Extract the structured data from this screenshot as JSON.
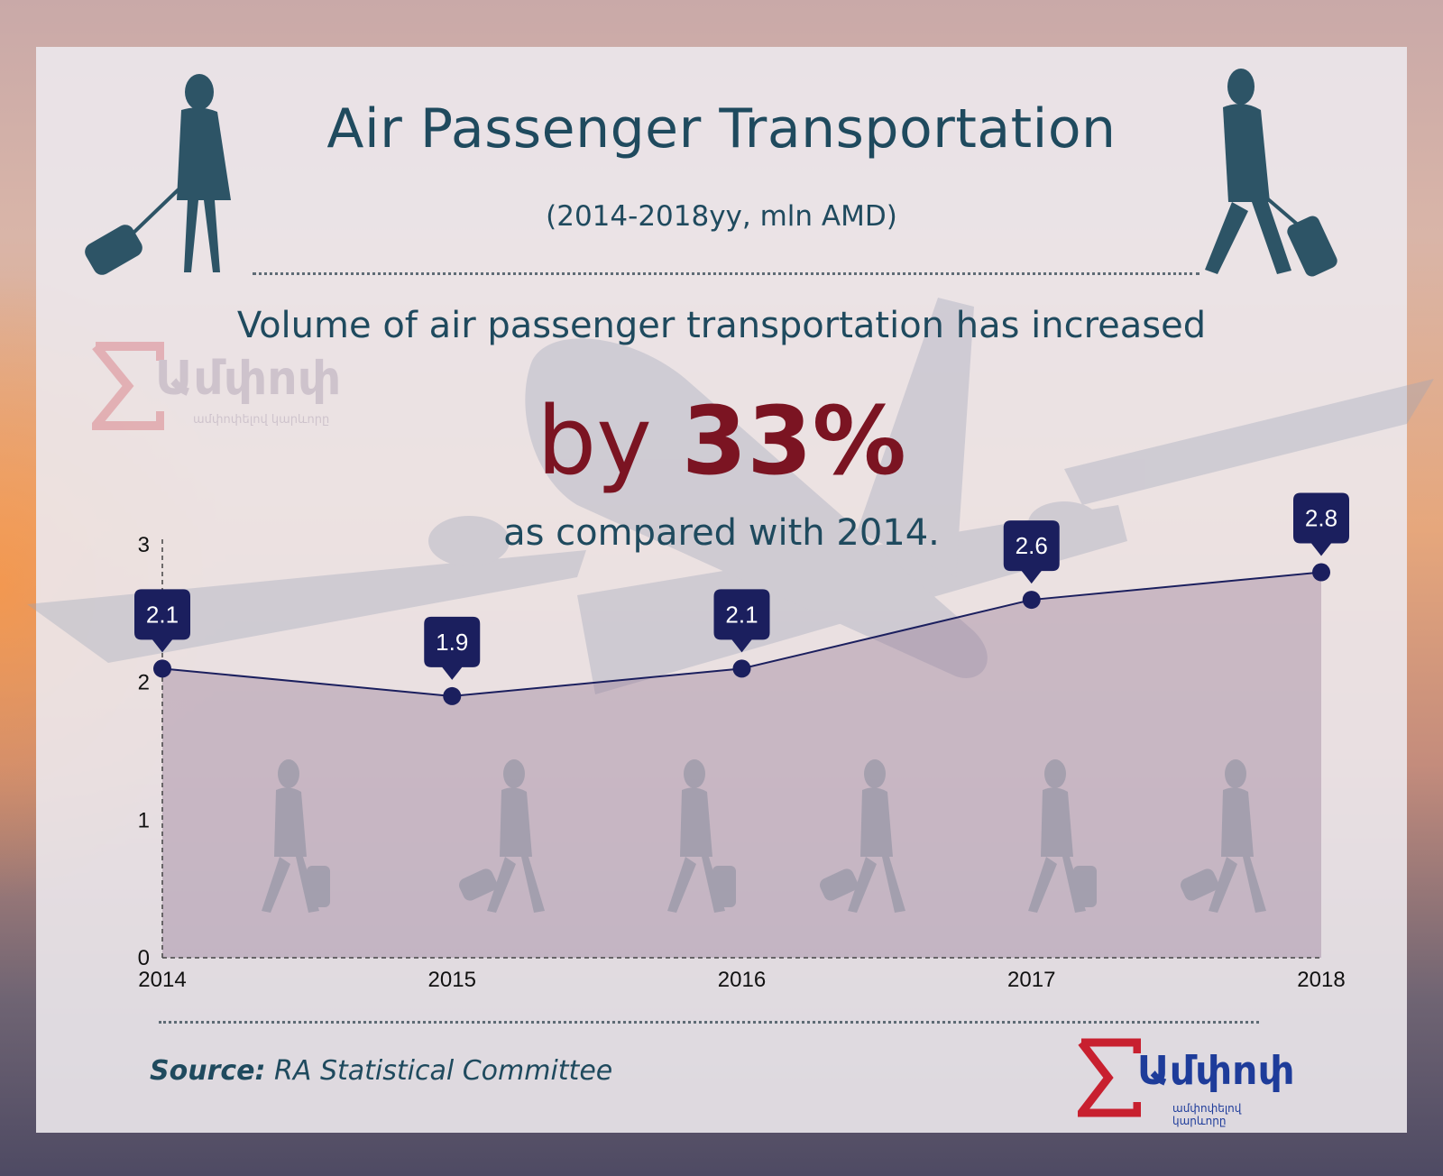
{
  "title": "Air Passenger Transportation",
  "subtitle": "(2014-2018yy, mln AMD)",
  "headline": "Volume of air passenger transportation has increased",
  "highlight": {
    "prefix": "by",
    "value": "33%"
  },
  "comparison": "as compared with 2014.",
  "source": {
    "label": "Source:",
    "text": "RA Statistical Committee"
  },
  "logo": {
    "text": "Ամփոփ",
    "subtitle": "ամփոփելով կարևորը"
  },
  "colors": {
    "title": "#1f4a5e",
    "highlight": "#7b1422",
    "line": "#1b1f5e",
    "logo_red": "#c8202f",
    "logo_blue": "#1e3c9a"
  },
  "chart_data": {
    "type": "area",
    "x": [
      2014,
      2015,
      2016,
      2017,
      2018
    ],
    "values": [
      2.1,
      1.9,
      2.1,
      2.6,
      2.8
    ],
    "data_labels": [
      "2.1",
      "1.9",
      "2.1",
      "2.6",
      "2.8"
    ],
    "x_tick_labels": [
      "2014",
      "2015",
      "2016",
      "2017",
      "2018"
    ],
    "y_tick_labels": [
      "0",
      "1",
      "2",
      "3"
    ],
    "ylim": [
      0,
      3
    ],
    "grid": false,
    "title": "",
    "xlabel": "",
    "ylabel": ""
  }
}
